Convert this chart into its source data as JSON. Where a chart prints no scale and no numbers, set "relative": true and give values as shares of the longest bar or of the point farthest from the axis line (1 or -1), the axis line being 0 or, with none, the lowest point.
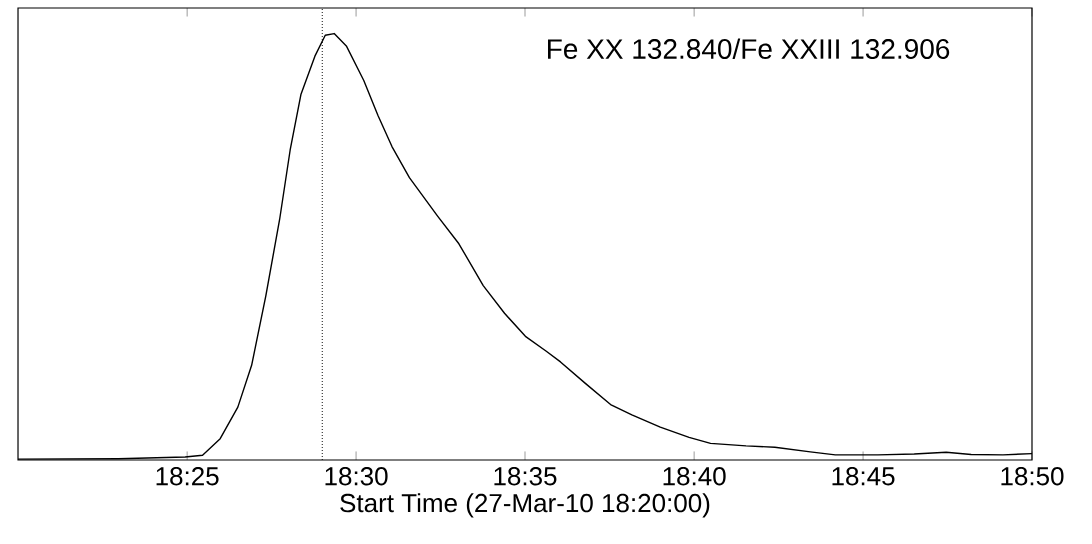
{
  "chart_data": {
    "type": "line",
    "xlabel": "Start Time (27-Mar-10 18:20:00)",
    "annotations": [
      "Fe XX 132.840/Fe XXIII 132.906"
    ],
    "relative": true,
    "xlim": [
      18.3333,
      18.8333
    ],
    "xticks": [
      {
        "value": 18.4167,
        "label": "18:25"
      },
      {
        "value": 18.5,
        "label": "18:30"
      },
      {
        "value": 18.5833,
        "label": "18:35"
      },
      {
        "value": 18.6667,
        "label": "18:40"
      },
      {
        "value": 18.75,
        "label": "18:45"
      },
      {
        "value": 18.8333,
        "label": "18:50"
      }
    ],
    "ref_lines": [
      {
        "axis": "x",
        "value": 18.4833,
        "line_style": "dotted"
      }
    ],
    "series": [
      {
        "color": "#000000",
        "line_style": "solid",
        "x": [
          18.3333,
          18.3828,
          18.4157,
          18.4243,
          18.433,
          18.4417,
          18.4485,
          18.4555,
          18.4623,
          18.4675,
          18.4728,
          18.4797,
          18.4848,
          18.4892,
          18.4952,
          18.5038,
          18.5108,
          18.5177,
          18.5263,
          18.5402,
          18.5507,
          18.5627,
          18.5732,
          18.5835,
          18.5938,
          18.6008,
          18.6132,
          18.6255,
          18.636,
          18.65,
          18.6642,
          18.6748,
          18.6923,
          18.7065,
          18.724,
          18.7363,
          18.7573,
          18.7752,
          18.791,
          18.8033,
          18.819,
          18.8333
        ],
        "values": [
          0.002,
          0.003,
          0.007,
          0.011,
          0.05,
          0.124,
          0.222,
          0.385,
          0.564,
          0.727,
          0.857,
          0.947,
          0.996,
          1.0,
          0.971,
          0.89,
          0.808,
          0.735,
          0.662,
          0.572,
          0.507,
          0.409,
          0.344,
          0.29,
          0.255,
          0.23,
          0.179,
          0.13,
          0.106,
          0.077,
          0.053,
          0.039,
          0.033,
          0.03,
          0.019,
          0.012,
          0.012,
          0.014,
          0.018,
          0.013,
          0.012,
          0.015
        ]
      }
    ]
  }
}
